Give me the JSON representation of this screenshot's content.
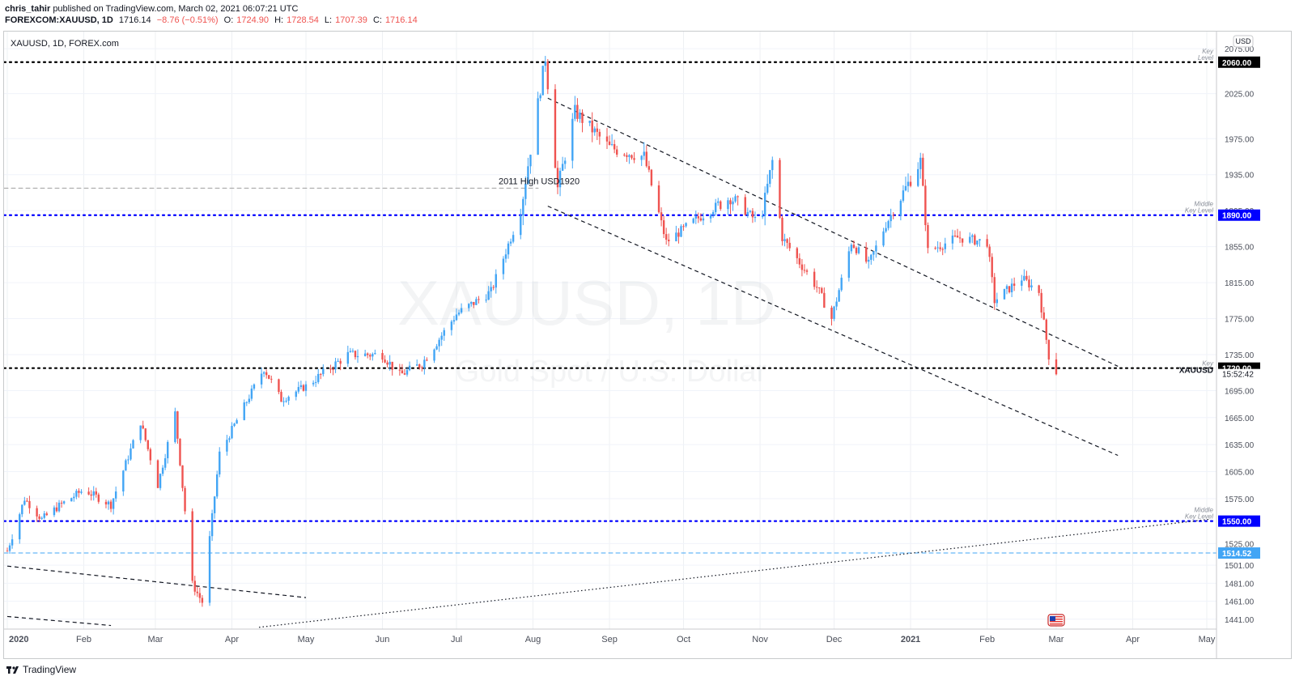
{
  "header": {
    "author": "chris_tahir",
    "published_text": "published on TradingView.com, March 02, 2021 06:07:21 UTC",
    "symbol": "FOREXCOM:XAUUSD, 1D",
    "last": "1716.14",
    "change": "−8.76 (−0.51%)",
    "o_label": "O:",
    "o_value": "1724.90",
    "h_label": "H:",
    "h_value": "1728.54",
    "l_label": "L:",
    "l_value": "1707.39",
    "c_label": "C:",
    "c_value": "1716.14"
  },
  "chart_title": "XAUUSD, 1D, FOREX.com",
  "watermark": {
    "symbol": "XAUUSD, 1D",
    "description": "Gold Spot / U.S. Dollar"
  },
  "currency_badge": "USD",
  "footer": {
    "brand": "TradingView"
  },
  "colors": {
    "up": "#42a5f5",
    "down": "#ef5350",
    "key_level": "#000000",
    "blue_level": "#0000ff",
    "price_axis_bg": "#ffffff"
  },
  "chart_data": {
    "type": "candlestick",
    "title": "XAUUSD, 1D, FOREX.com",
    "ylim": [
      1430,
      2085
    ],
    "y_ticks": [
      2075,
      2025,
      1975,
      1935,
      1895,
      1855,
      1815,
      1775,
      1735,
      1695,
      1665,
      1635,
      1605,
      1575,
      1525,
      1501,
      1481,
      1461,
      1441
    ],
    "x_labels": [
      "2020",
      "Feb",
      "Mar",
      "Apr",
      "May",
      "Jun",
      "Jul",
      "Aug",
      "Sep",
      "Oct",
      "Nov",
      "Dec",
      "2021",
      "Feb",
      "Mar",
      "Apr",
      "May"
    ],
    "horizontal_levels": [
      {
        "value": 2060,
        "label": "2060.00",
        "style": "dotted",
        "color": "#000000",
        "note": "Key Level"
      },
      {
        "value": 1890,
        "label": "1890.00",
        "style": "dotted",
        "color": "#0000ff",
        "note": "Middle Key Level"
      },
      {
        "value": 1720,
        "label": "1720.00",
        "style": "dotted",
        "color": "#000000",
        "note": "Key"
      },
      {
        "value": 1550,
        "label": "1550.00",
        "style": "dotted",
        "color": "#0000ff",
        "note": "Middle Key Level"
      },
      {
        "value": 1514.52,
        "label": "1514.52",
        "style": "dashed",
        "color": "#42a5f5",
        "note": ""
      },
      {
        "value": 1920,
        "label": "",
        "style": "dashed",
        "color": "#9e9e9e",
        "note": ""
      }
    ],
    "annotations": [
      "2011 High USD1920"
    ],
    "last_price": {
      "symbol": "XAUUSD",
      "countdown": "15:52:42"
    },
    "trend_lines": [
      {
        "from": [
          "2020-08-07",
          2020
        ],
        "to": [
          "2021-03-26",
          1722
        ],
        "style": "dashed"
      },
      {
        "from": [
          "2020-08-07",
          1900
        ],
        "to": [
          "2021-03-26",
          1623
        ],
        "style": "dashed"
      },
      {
        "from": [
          "2020-01-01",
          1500
        ],
        "to": [
          "2020-05-01",
          1465
        ],
        "style": "dashed"
      },
      {
        "from": [
          "2020-01-01",
          1444
        ],
        "to": [
          "2020-02-12",
          1434
        ],
        "style": "dashed"
      },
      {
        "from": [
          "2020-04-12",
          1432
        ],
        "to": [
          "2021-05-02",
          1552
        ],
        "style": "dotted"
      }
    ],
    "series": [
      {
        "name": "XAUUSD",
        "path": [
          [
            "2020-01-01",
            1517
          ],
          [
            "2020-01-08",
            1575
          ],
          [
            "2020-01-15",
            1552
          ],
          [
            "2020-01-22",
            1567
          ],
          [
            "2020-02-01",
            1585
          ],
          [
            "2020-02-12",
            1568
          ],
          [
            "2020-02-24",
            1660
          ],
          [
            "2020-03-02",
            1590
          ],
          [
            "2020-03-09",
            1670
          ],
          [
            "2020-03-16",
            1480
          ],
          [
            "2020-03-20",
            1460
          ],
          [
            "2020-03-27",
            1625
          ],
          [
            "2020-04-14",
            1720
          ],
          [
            "2020-04-21",
            1685
          ],
          [
            "2020-05-01",
            1700
          ],
          [
            "2020-05-18",
            1735
          ],
          [
            "2020-06-01",
            1735
          ],
          [
            "2020-06-08",
            1712
          ],
          [
            "2020-06-17",
            1725
          ],
          [
            "2020-07-01",
            1780
          ],
          [
            "2020-07-15",
            1805
          ],
          [
            "2020-07-27",
            1895
          ],
          [
            "2020-08-06",
            2065
          ],
          [
            "2020-08-11",
            1920
          ],
          [
            "2020-08-18",
            2005
          ],
          [
            "2020-09-01",
            1965
          ],
          [
            "2020-09-15",
            1955
          ],
          [
            "2020-09-24",
            1860
          ],
          [
            "2020-10-06",
            1885
          ],
          [
            "2020-10-20",
            1910
          ],
          [
            "2020-11-01",
            1880
          ],
          [
            "2020-11-06",
            1950
          ],
          [
            "2020-11-10",
            1865
          ],
          [
            "2020-11-24",
            1810
          ],
          [
            "2020-11-30",
            1775
          ],
          [
            "2020-12-08",
            1860
          ],
          [
            "2020-12-15",
            1835
          ],
          [
            "2020-12-22",
            1880
          ],
          [
            "2021-01-05",
            1950
          ],
          [
            "2021-01-08",
            1850
          ],
          [
            "2021-01-20",
            1865
          ],
          [
            "2021-02-01",
            1860
          ],
          [
            "2021-02-04",
            1795
          ],
          [
            "2021-02-15",
            1820
          ],
          [
            "2021-02-22",
            1805
          ],
          [
            "2021-02-26",
            1734
          ],
          [
            "2021-03-01",
            1716
          ]
        ]
      }
    ]
  }
}
